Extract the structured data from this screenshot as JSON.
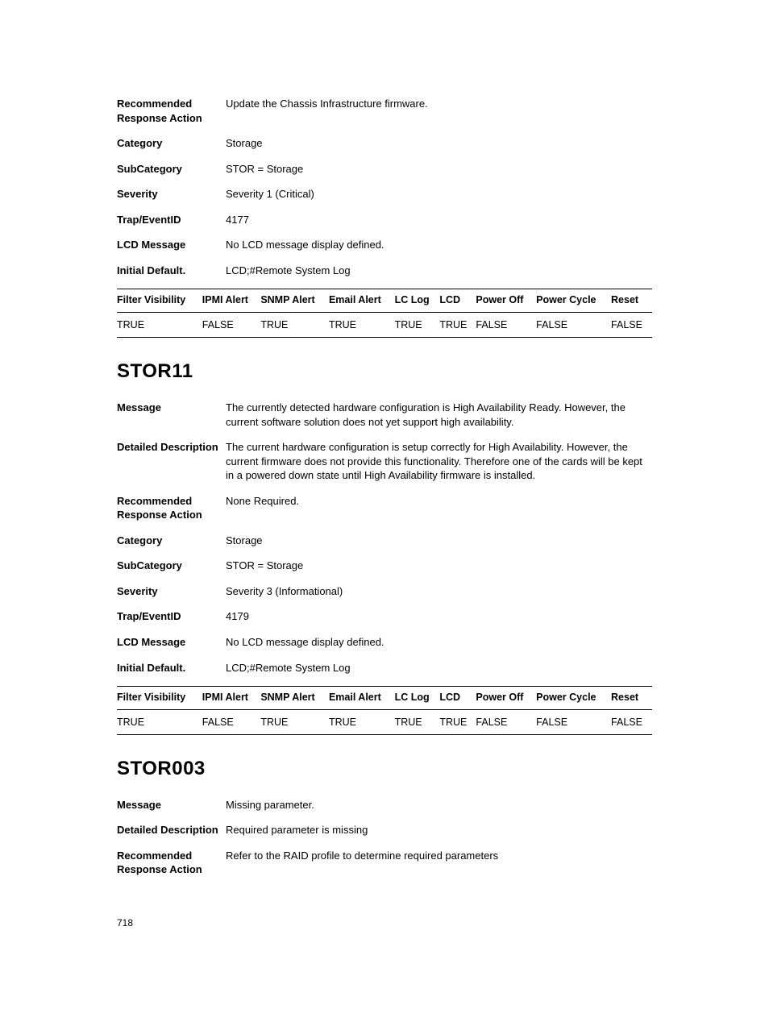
{
  "section1": {
    "fields": [
      {
        "label": "Recommended Response Action",
        "value": "Update the Chassis Infrastructure firmware."
      },
      {
        "label": "Category",
        "value": "Storage"
      },
      {
        "label": "SubCategory",
        "value": "STOR = Storage"
      },
      {
        "label": "Severity",
        "value": "Severity 1 (Critical)"
      },
      {
        "label": "Trap/EventID",
        "value": "4177"
      },
      {
        "label": "LCD Message",
        "value": "No LCD message display defined."
      },
      {
        "label": "Initial Default.",
        "value": "LCD;#Remote System Log"
      }
    ],
    "flag_headers": [
      "Filter Visibility",
      "IPMI Alert",
      "SNMP Alert",
      "Email Alert",
      "LC Log",
      "LCD",
      "Power Off",
      "Power Cycle",
      "Reset"
    ],
    "flag_values": [
      "TRUE",
      "FALSE",
      "TRUE",
      "TRUE",
      "TRUE",
      "TRUE",
      "FALSE",
      "FALSE",
      "FALSE"
    ]
  },
  "section2": {
    "heading": "STOR11",
    "fields": [
      {
        "label": "Message",
        "value": "The currently detected hardware configuration is High Availability Ready. However, the current software solution does not yet support high availability."
      },
      {
        "label": "Detailed Description",
        "value": "The current hardware configuration is setup correctly for High Availability. However, the current firmware does not provide this functionality. Therefore one of the cards will be kept in a powered down state until High Availability firmware is installed."
      },
      {
        "label": "Recommended Response Action",
        "value": "None Required."
      },
      {
        "label": "Category",
        "value": "Storage"
      },
      {
        "label": "SubCategory",
        "value": "STOR = Storage"
      },
      {
        "label": "Severity",
        "value": "Severity 3 (Informational)"
      },
      {
        "label": "Trap/EventID",
        "value": "4179"
      },
      {
        "label": "LCD Message",
        "value": "No LCD message display defined."
      },
      {
        "label": "Initial Default.",
        "value": "LCD;#Remote System Log"
      }
    ],
    "flag_headers": [
      "Filter Visibility",
      "IPMI Alert",
      "SNMP Alert",
      "Email Alert",
      "LC Log",
      "LCD",
      "Power Off",
      "Power Cycle",
      "Reset"
    ],
    "flag_values": [
      "TRUE",
      "FALSE",
      "TRUE",
      "TRUE",
      "TRUE",
      "TRUE",
      "FALSE",
      "FALSE",
      "FALSE"
    ]
  },
  "section3": {
    "heading": "STOR003",
    "fields": [
      {
        "label": "Message",
        "value": "Missing parameter."
      },
      {
        "label": "Detailed Description",
        "value": "Required parameter is missing"
      },
      {
        "label": "Recommended Response Action",
        "value": "Refer to the RAID profile to determine required parameters"
      }
    ]
  },
  "page_number": "718"
}
